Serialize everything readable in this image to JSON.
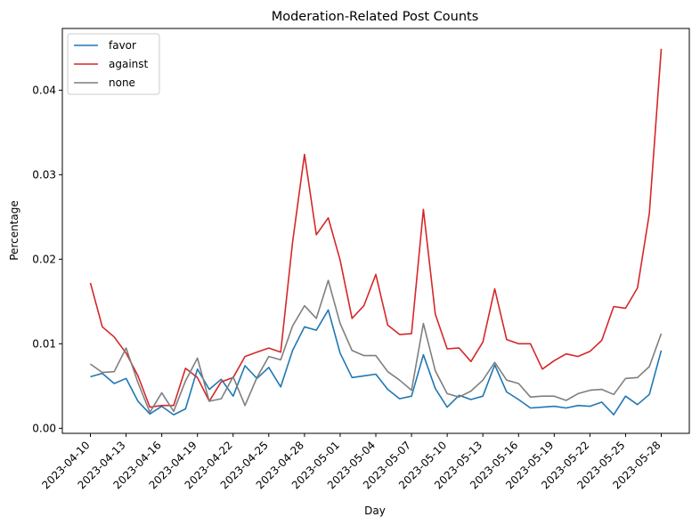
{
  "chart_data": {
    "type": "line",
    "title": "Moderation-Related Post Counts",
    "xlabel": "Day",
    "ylabel": "Percentage",
    "ylim": [
      -0.0006,
      0.0473
    ],
    "yticks": [
      0.0,
      0.01,
      0.02,
      0.03,
      0.04
    ],
    "ytick_labels": [
      "0.00",
      "0.01",
      "0.02",
      "0.03",
      "0.04"
    ],
    "grid": false,
    "legend_position": "top-left",
    "xtick_labels": [
      "2023-04-10",
      "2023-04-13",
      "2023-04-16",
      "2023-04-19",
      "2023-04-22",
      "2023-04-25",
      "2023-04-28",
      "2023-05-01",
      "2023-05-04",
      "2023-05-07",
      "2023-05-10",
      "2023-05-13",
      "2023-05-16",
      "2023-05-19",
      "2023-05-22",
      "2023-05-25",
      "2023-05-28"
    ],
    "x": [
      "2023-04-10",
      "2023-04-11",
      "2023-04-12",
      "2023-04-13",
      "2023-04-14",
      "2023-04-15",
      "2023-04-16",
      "2023-04-17",
      "2023-04-18",
      "2023-04-19",
      "2023-04-20",
      "2023-04-21",
      "2023-04-22",
      "2023-04-23",
      "2023-04-24",
      "2023-04-25",
      "2023-04-26",
      "2023-04-27",
      "2023-04-28",
      "2023-04-29",
      "2023-04-30",
      "2023-05-01",
      "2023-05-02",
      "2023-05-03",
      "2023-05-04",
      "2023-05-05",
      "2023-05-06",
      "2023-05-07",
      "2023-05-08",
      "2023-05-09",
      "2023-05-10",
      "2023-05-11",
      "2023-05-12",
      "2023-05-13",
      "2023-05-14",
      "2023-05-15",
      "2023-05-16",
      "2023-05-17",
      "2023-05-18",
      "2023-05-19",
      "2023-05-20",
      "2023-05-21",
      "2023-05-22",
      "2023-05-23",
      "2023-05-24",
      "2023-05-25",
      "2023-05-26",
      "2023-05-27",
      "2023-05-28"
    ],
    "series": [
      {
        "name": "favor",
        "color": "#1f77b4",
        "values": [
          0.0061,
          0.0065,
          0.0053,
          0.0059,
          0.0032,
          0.0017,
          0.0026,
          0.0016,
          0.0023,
          0.007,
          0.0046,
          0.0058,
          0.0038,
          0.0074,
          0.0059,
          0.0072,
          0.0049,
          0.0092,
          0.012,
          0.0116,
          0.014,
          0.0089,
          0.006,
          0.0062,
          0.0064,
          0.0046,
          0.0035,
          0.0038,
          0.0087,
          0.0047,
          0.0025,
          0.0039,
          0.0034,
          0.0038,
          0.0075,
          0.0043,
          0.0034,
          0.0024,
          0.0025,
          0.0026,
          0.0024,
          0.0027,
          0.0026,
          0.0031,
          0.0016,
          0.0038,
          0.0028,
          0.004,
          0.0092
        ]
      },
      {
        "name": "against",
        "color": "#d62728",
        "values": [
          0.0172,
          0.012,
          0.0108,
          0.0089,
          0.0062,
          0.0025,
          0.0027,
          0.0027,
          0.0071,
          0.006,
          0.0032,
          0.0055,
          0.006,
          0.0085,
          0.009,
          0.0095,
          0.009,
          0.022,
          0.0324,
          0.0229,
          0.0249,
          0.0199,
          0.013,
          0.0145,
          0.0182,
          0.0122,
          0.0111,
          0.0112,
          0.0259,
          0.0135,
          0.0094,
          0.0095,
          0.0079,
          0.0102,
          0.0165,
          0.0105,
          0.01,
          0.01,
          0.007,
          0.008,
          0.0088,
          0.0085,
          0.0091,
          0.0104,
          0.0144,
          0.0142,
          0.0166,
          0.0254,
          0.0449
        ]
      },
      {
        "name": "none",
        "color": "#7f7f7f",
        "values": [
          0.0076,
          0.0066,
          0.0067,
          0.0095,
          0.0054,
          0.0019,
          0.0042,
          0.002,
          0.0056,
          0.0083,
          0.0032,
          0.0035,
          0.0061,
          0.0027,
          0.006,
          0.0085,
          0.0081,
          0.0121,
          0.0145,
          0.013,
          0.0175,
          0.0124,
          0.0092,
          0.0086,
          0.0086,
          0.0067,
          0.0057,
          0.0045,
          0.0124,
          0.0068,
          0.0041,
          0.0037,
          0.0044,
          0.0057,
          0.0078,
          0.0057,
          0.0053,
          0.0037,
          0.0038,
          0.0038,
          0.0033,
          0.0041,
          0.0045,
          0.0046,
          0.004,
          0.0059,
          0.006,
          0.0073,
          0.0112
        ]
      }
    ]
  }
}
